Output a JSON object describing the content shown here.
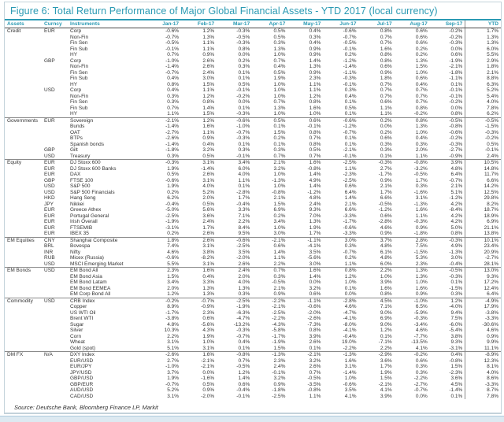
{
  "colors": {
    "accent_teal": "#2b9ab3",
    "text": "#333333",
    "separator": "#8a8a8a"
  },
  "chart_data": {
    "type": "table",
    "title": "Figure 6: Total Return Performance of Major Global Financial Assets - YTD 2017 (local currency)",
    "source": "Source: Deutsche Bank, Bloomberg Finance LP, Markit",
    "columns": [
      "Assets",
      "Curncy",
      "Instruments",
      "Jan-17",
      "Feb-17",
      "Mar-17",
      "Apr-17",
      "May-17",
      "Jun-17",
      "Jul-17",
      "Aug-17",
      "Sep-17",
      "YTD"
    ],
    "rows": [
      {
        "asset": "Credit",
        "ccy": "EUR",
        "instrument": "Corp",
        "values": [
          "-0.6%",
          "1.2%",
          "-0.3%",
          "0.5%",
          "0.4%",
          "-0.6%",
          "0.8%",
          "0.6%",
          "-0.2%",
          "1.7%"
        ]
      },
      {
        "asset": "",
        "ccy": "",
        "instrument": "Non-Fin",
        "values": [
          "-0.7%",
          "1.3%",
          "-0.5%",
          "0.5%",
          "0.3%",
          "-0.7%",
          "0.7%",
          "0.6%",
          "-0.2%",
          "1.3%"
        ]
      },
      {
        "asset": "",
        "ccy": "",
        "instrument": "Fin Sen",
        "values": [
          "-0.5%",
          "1.1%",
          "-0.3%",
          "0.3%",
          "0.4%",
          "-0.5%",
          "0.7%",
          "0.6%",
          "-0.3%",
          "1.3%"
        ]
      },
      {
        "asset": "",
        "ccy": "",
        "instrument": "Fin Sub",
        "values": [
          "-0.1%",
          "1.1%",
          "0.8%",
          "1.3%",
          "0.9%",
          "-0.1%",
          "1.6%",
          "0.2%",
          "0.0%",
          "6.0%"
        ]
      },
      {
        "asset": "",
        "ccy": "",
        "instrument": "HY",
        "values": [
          "0.7%",
          "0.9%",
          "0.0%",
          "1.0%",
          "0.9%",
          "0.2%",
          "0.8%",
          "0.2%",
          "0.6%",
          "5.5%"
        ]
      },
      {
        "asset": "",
        "ccy": "GBP",
        "instrument": "Corp",
        "values": [
          "-1.0%",
          "2.6%",
          "0.2%",
          "0.7%",
          "1.4%",
          "-1.2%",
          "0.8%",
          "1.3%",
          "-1.9%",
          "2.9%"
        ]
      },
      {
        "asset": "",
        "ccy": "",
        "instrument": "Non-Fin",
        "values": [
          "-1.4%",
          "2.6%",
          "0.3%",
          "0.4%",
          "1.3%",
          "-1.4%",
          "0.6%",
          "1.5%",
          "-2.1%",
          "1.8%"
        ]
      },
      {
        "asset": "",
        "ccy": "",
        "instrument": "Fin Sen",
        "values": [
          "-0.7%",
          "2.4%",
          "0.1%",
          "0.5%",
          "0.9%",
          "-1.1%",
          "0.9%",
          "1.0%",
          "-1.8%",
          "2.1%"
        ]
      },
      {
        "asset": "",
        "ccy": "",
        "instrument": "Fin Sub",
        "values": [
          "0.4%",
          "3.0%",
          "0.1%",
          "1.9%",
          "2.3%",
          "-0.3%",
          "1.8%",
          "0.6%",
          "-1.1%",
          "8.8%"
        ]
      },
      {
        "asset": "",
        "ccy": "",
        "instrument": "HY",
        "values": [
          "0.8%",
          "1.5%",
          "0.5%",
          "1.0%",
          "1.1%",
          "-0.1%",
          "0.7%",
          "0.4%",
          "0.1%",
          "6.3%"
        ]
      },
      {
        "asset": "",
        "ccy": "USD",
        "instrument": "Corp",
        "values": [
          "0.4%",
          "1.1%",
          "-0.1%",
          "1.0%",
          "1.1%",
          "0.3%",
          "0.7%",
          "0.7%",
          "-0.1%",
          "5.2%"
        ]
      },
      {
        "asset": "",
        "ccy": "",
        "instrument": "Non-Fin",
        "values": [
          "0.3%",
          "1.2%",
          "-0.2%",
          "1.0%",
          "1.2%",
          "0.4%",
          "0.7%",
          "0.7%",
          "-0.1%",
          "5.4%"
        ]
      },
      {
        "asset": "",
        "ccy": "",
        "instrument": "Fin Sen",
        "values": [
          "0.3%",
          "0.8%",
          "0.0%",
          "0.7%",
          "0.8%",
          "0.1%",
          "0.6%",
          "0.7%",
          "-0.2%",
          "4.0%"
        ]
      },
      {
        "asset": "",
        "ccy": "",
        "instrument": "Fin Sub",
        "values": [
          "0.7%",
          "1.4%",
          "0.1%",
          "1.3%",
          "1.6%",
          "0.5%",
          "1.1%",
          "0.8%",
          "0.0%",
          "7.8%"
        ]
      },
      {
        "asset": "",
        "ccy": "",
        "instrument": "HY",
        "values": [
          "1.1%",
          "1.5%",
          "-0.3%",
          "1.0%",
          "1.0%",
          "0.1%",
          "1.1%",
          "-0.2%",
          "0.8%",
          "6.2%"
        ]
      },
      {
        "asset": "Governments",
        "ccy": "EUR",
        "instrument": "Sovereign",
        "values": [
          "-2.1%",
          "1.2%",
          "-0.6%",
          "0.5%",
          "0.6%",
          "-0.6%",
          "0.2%",
          "0.8%",
          "-0.5%",
          "-0.5%"
        ]
      },
      {
        "asset": "",
        "ccy": "",
        "instrument": "Bunds",
        "values": [
          "-1.4%",
          "1.6%",
          "-1.0%",
          "0.1%",
          "-0.1%",
          "-1.2%",
          "0.0%",
          "1.3%",
          "-0.8%",
          "-1.5%"
        ]
      },
      {
        "asset": "",
        "ccy": "",
        "instrument": "OAT",
        "values": [
          "-2.7%",
          "1.1%",
          "-0.7%",
          "1.5%",
          "0.8%",
          "-0.7%",
          "0.2%",
          "1.0%",
          "-0.6%",
          "-0.3%"
        ]
      },
      {
        "asset": "",
        "ccy": "",
        "instrument": "BTPs",
        "values": [
          "-2.6%",
          "0.9%",
          "-0.3%",
          "0.2%",
          "0.7%",
          "0.1%",
          "0.6%",
          "0.4%",
          "-0.2%",
          "-0.2%"
        ]
      },
      {
        "asset": "",
        "ccy": "",
        "instrument": "Spanish bonds",
        "values": [
          "-1.4%",
          "0.4%",
          "0.1%",
          "0.1%",
          "0.8%",
          "0.1%",
          "0.3%",
          "0.3%",
          "-0.3%",
          "0.5%"
        ]
      },
      {
        "asset": "",
        "ccy": "GBP",
        "instrument": "Gilt",
        "values": [
          "-1.8%",
          "3.2%",
          "0.3%",
          "0.3%",
          "0.5%",
          "-2.1%",
          "0.3%",
          "2.0%",
          "-2.7%",
          "-0.1%"
        ]
      },
      {
        "asset": "",
        "ccy": "USD",
        "instrument": "Treasury",
        "values": [
          "0.3%",
          "0.5%",
          "-0.1%",
          "0.7%",
          "0.7%",
          "-0.1%",
          "0.1%",
          "1.1%",
          "-0.9%",
          "2.4%"
        ]
      },
      {
        "asset": "Equity",
        "ccy": "EUR",
        "instrument": "DJ Stoxx 600",
        "values": [
          "-0.3%",
          "3.1%",
          "3.4%",
          "2.1%",
          "1.6%",
          "-2.5%",
          "-0.3%",
          "-0.8%",
          "3.9%",
          "10.5%"
        ]
      },
      {
        "asset": "",
        "ccy": "EUR",
        "instrument": "DJ Stoxx 600 Banks",
        "values": [
          "1.9%",
          "-1.4%",
          "6.0%",
          "3.2%",
          "-0.8%",
          "1.1%",
          "2.7%",
          "-3.2%",
          "4.8%",
          "14.8%"
        ]
      },
      {
        "asset": "",
        "ccy": "EUR",
        "instrument": "DAX",
        "values": [
          "0.5%",
          "2.6%",
          "4.0%",
          "1.0%",
          "1.4%",
          "-2.3%",
          "-1.7%",
          "-0.5%",
          "6.4%",
          "11.7%"
        ]
      },
      {
        "asset": "",
        "ccy": "GBP",
        "instrument": "FTSE 100",
        "values": [
          "-0.6%",
          "3.1%",
          "1.1%",
          "-1.3%",
          "4.9%",
          "-2.5%",
          "0.9%",
          "1.7%",
          "-0.7%",
          "6.6%"
        ]
      },
      {
        "asset": "",
        "ccy": "USD",
        "instrument": "S&P 500",
        "values": [
          "1.9%",
          "4.0%",
          "0.1%",
          "1.0%",
          "1.4%",
          "0.6%",
          "2.1%",
          "0.3%",
          "2.1%",
          "14.2%"
        ]
      },
      {
        "asset": "",
        "ccy": "USD",
        "instrument": "S&P 500 Financials",
        "values": [
          "0.2%",
          "5.2%",
          "-2.8%",
          "-0.8%",
          "-1.2%",
          "6.4%",
          "1.7%",
          "-1.6%",
          "5.1%",
          "12.5%"
        ]
      },
      {
        "asset": "",
        "ccy": "HKD",
        "instrument": "Hang Seng",
        "values": [
          "6.2%",
          "2.0%",
          "1.7%",
          "2.1%",
          "4.8%",
          "1.4%",
          "6.6%",
          "3.1%",
          "-1.2%",
          "29.8%"
        ]
      },
      {
        "asset": "",
        "ccy": "JPY",
        "instrument": "Nikkei",
        "values": [
          "-0.4%",
          "0.5%",
          "-0.4%",
          "1.5%",
          "2.4%",
          "2.1%",
          "-0.5%",
          "-1.3%",
          "4.2%",
          "8.2%"
        ]
      },
      {
        "asset": "",
        "ccy": "EUR",
        "instrument": "Greece Athex",
        "values": [
          "-5.0%",
          "5.6%",
          "3.3%",
          "6.9%",
          "9.3%",
          "6.6%",
          "-1.2%",
          "1.6%",
          "-8.4%",
          "18.7%"
        ]
      },
      {
        "asset": "",
        "ccy": "EUR",
        "instrument": "Portugal General",
        "values": [
          "-2.5%",
          "3.6%",
          "7.1%",
          "0.2%",
          "7.0%",
          "-3.3%",
          "0.6%",
          "1.1%",
          "4.2%",
          "18.9%"
        ]
      },
      {
        "asset": "",
        "ccy": "EUR",
        "instrument": "Irish Overall",
        "values": [
          "-1.9%",
          "2.4%",
          "2.2%",
          "3.4%",
          "1.3%",
          "-1.7%",
          "-2.8%",
          "-0.3%",
          "4.2%",
          "6.9%"
        ]
      },
      {
        "asset": "",
        "ccy": "EUR",
        "instrument": "FTSEMIB",
        "values": [
          "-3.1%",
          "1.7%",
          "8.4%",
          "1.0%",
          "1.9%",
          "-0.6%",
          "4.6%",
          "0.9%",
          "5.0%",
          "21.1%"
        ]
      },
      {
        "asset": "",
        "ccy": "EUR",
        "instrument": "IBEX 35",
        "values": [
          "0.2%",
          "2.6%",
          "9.5%",
          "3.0%",
          "1.7%",
          "-3.3%",
          "0.9%",
          "-1.8%",
          "0.8%",
          "13.8%"
        ]
      },
      {
        "asset": "EM Equities",
        "ccy": "CNY",
        "instrument": "Shanghai Composite",
        "values": [
          "1.8%",
          "2.6%",
          "-0.6%",
          "-2.1%",
          "-1.1%",
          "3.0%",
          "3.7%",
          "2.8%",
          "-0.3%",
          "10.1%"
        ]
      },
      {
        "asset": "",
        "ccy": "BRL",
        "instrument": "Bovespa",
        "values": [
          "7.4%",
          "3.1%",
          "-2.5%",
          "0.6%",
          "-4.1%",
          "0.3%",
          "4.8%",
          "7.5%",
          "4.9%",
          "23.4%"
        ]
      },
      {
        "asset": "",
        "ccy": "INR",
        "instrument": "Nifty",
        "values": [
          "4.6%",
          "3.8%",
          "3.5%",
          "1.4%",
          "3.5%",
          "-0.7%",
          "6.1%",
          "-1.5%",
          "-1.3%",
          "20.9%"
        ]
      },
      {
        "asset": "",
        "ccy": "RUB",
        "instrument": "Micex (Russia)",
        "values": [
          "-0.6%",
          "-8.2%",
          "-2.0%",
          "1.1%",
          "-5.6%",
          "0.2%",
          "4.8%",
          "5.3%",
          "3.0%",
          "-2.7%"
        ]
      },
      {
        "asset": "",
        "ccy": "USD",
        "instrument": "MSCI Emerging Market",
        "values": [
          "5.5%",
          "3.1%",
          "2.6%",
          "2.2%",
          "3.0%",
          "1.1%",
          "6.0%",
          "2.3%",
          "-0.4%",
          "28.1%"
        ]
      },
      {
        "asset": "EM Bonds",
        "ccy": "USD",
        "instrument": "EM Bond All",
        "values": [
          "2.3%",
          "1.6%",
          "2.4%",
          "0.7%",
          "1.6%",
          "0.8%",
          "2.2%",
          "1.3%",
          "-0.5%",
          "13.0%"
        ]
      },
      {
        "asset": "",
        "ccy": "",
        "instrument": "EM Bond Asia",
        "values": [
          "1.5%",
          "0.4%",
          "2.0%",
          "0.3%",
          "1.4%",
          "1.2%",
          "1.0%",
          "1.3%",
          "-0.3%",
          "9.3%"
        ]
      },
      {
        "asset": "",
        "ccy": "",
        "instrument": "EM Bond Latam",
        "values": [
          "3.4%",
          "3.3%",
          "4.0%",
          "-0.5%",
          "0.0%",
          "1.0%",
          "3.9%",
          "1.0%",
          "0.1%",
          "17.2%"
        ]
      },
      {
        "asset": "",
        "ccy": "",
        "instrument": "EM Bond EEMEA",
        "values": [
          "2.0%",
          "1.3%",
          "1.3%",
          "2.1%",
          "3.2%",
          "0.1%",
          "1.6%",
          "1.6%",
          "-1.5%",
          "12.4%"
        ]
      },
      {
        "asset": "",
        "ccy": "",
        "instrument": "EM Corp Bond All",
        "values": [
          "1.2%",
          "1.3%",
          "0.3%",
          "0.9%",
          "0.6%",
          "0.0%",
          "0.8%",
          "0.9%",
          "0.3%",
          "6.4%"
        ]
      },
      {
        "asset": "Commodity",
        "ccy": "USD",
        "instrument": "CRB Index",
        "values": [
          "-0.2%",
          "-0.7%",
          "-2.5%",
          "-2.2%",
          "-1.1%",
          "-2.8%",
          "4.5%",
          "-1.0%",
          "1.2%",
          "-4.9%"
        ]
      },
      {
        "asset": "",
        "ccy": "",
        "instrument": "Copper",
        "values": [
          "8.9%",
          "-0.9%",
          "-1.9%",
          "-2.1%",
          "-0.6%",
          "4.6%",
          "7.1%",
          "6.5%",
          "-4.0%",
          "17.9%"
        ]
      },
      {
        "asset": "",
        "ccy": "",
        "instrument": "US WTI Oil",
        "values": [
          "-1.7%",
          "2.3%",
          "-6.3%",
          "-2.5%",
          "-2.0%",
          "-4.7%",
          "9.0%",
          "-5.9%",
          "9.4%",
          "-3.8%"
        ]
      },
      {
        "asset": "",
        "ccy": "",
        "instrument": "Brent WTI",
        "values": [
          "-3.8%",
          "0.6%",
          "-4.7%",
          "-2.2%",
          "-2.6%",
          "-4.1%",
          "6.9%",
          "-0.3%",
          "7.5%",
          "-3.3%"
        ]
      },
      {
        "asset": "",
        "ccy": "",
        "instrument": "Sugar",
        "values": [
          "4.8%",
          "-5.6%",
          "-13.2%",
          "-4.3%",
          "-7.3%",
          "-8.0%",
          "9.0%",
          "-3.4%",
          "-6.0%",
          "-30.6%"
        ]
      },
      {
        "asset": "",
        "ccy": "",
        "instrument": "Silver",
        "values": [
          "10.3%",
          "4.3%",
          "-0.3%",
          "-5.8%",
          "0.8%",
          "-4.1%",
          "1.2%",
          "4.6%",
          "-5.4%",
          "4.6%"
        ]
      },
      {
        "asset": "",
        "ccy": "",
        "instrument": "Corn",
        "values": [
          "2.2%",
          "1.9%",
          "-0.7%",
          "-1.7%",
          "3.9%",
          "-0.4%",
          "0.1%",
          "-7.7%",
          "3.8%",
          "0.9%"
        ]
      },
      {
        "asset": "",
        "ccy": "",
        "instrument": "Wheat",
        "values": [
          "3.1%",
          "1.0%",
          "0.4%",
          "-1.9%",
          "2.6%",
          "19.0%",
          "-7.1%",
          "-13.5%",
          "9.3%",
          "9.9%"
        ]
      },
      {
        "asset": "",
        "ccy": "",
        "instrument": "Gold (spot)",
        "values": [
          "5.1%",
          "3.1%",
          "0.1%",
          "1.5%",
          "0.1%",
          "-2.2%",
          "2.2%",
          "4.1%",
          "-3.1%",
          "11.1%"
        ]
      },
      {
        "asset": "DM FX",
        "ccy": "N/A",
        "instrument": "DXY Index",
        "values": [
          "-2.6%",
          "1.6%",
          "-0.8%",
          "-1.3%",
          "-2.1%",
          "-1.3%",
          "-2.9%",
          "-0.2%",
          "0.4%",
          "-8.9%"
        ]
      },
      {
        "asset": "",
        "ccy": "",
        "instrument": "EUR/USD",
        "values": [
          "2.7%",
          "-2.1%",
          "0.7%",
          "2.3%",
          "3.2%",
          "1.6%",
          "3.6%",
          "0.6%",
          "-0.8%",
          "12.3%"
        ]
      },
      {
        "asset": "",
        "ccy": "",
        "instrument": "EUR/JPY",
        "values": [
          "-1.0%",
          "-2.1%",
          "-0.5%",
          "2.4%",
          "2.6%",
          "3.1%",
          "1.7%",
          "0.3%",
          "1.5%",
          "8.1%"
        ]
      },
      {
        "asset": "",
        "ccy": "",
        "instrument": "JPY/USD",
        "values": [
          "3.7%",
          "0.0%",
          "1.2%",
          "-0.1%",
          "0.7%",
          "-1.4%",
          "1.9%",
          "0.3%",
          "-2.3%",
          "4.0%"
        ]
      },
      {
        "asset": "",
        "ccy": "",
        "instrument": "GBP/USD",
        "values": [
          "1.9%",
          "-1.6%",
          "1.4%",
          "3.2%",
          "-0.5%",
          "1.0%",
          "1.5%",
          "-2.2%",
          "3.6%",
          "8.6%"
        ]
      },
      {
        "asset": "",
        "ccy": "",
        "instrument": "GBP/EUR",
        "values": [
          "-0.7%",
          "0.5%",
          "0.6%",
          "0.9%",
          "-3.5%",
          "-0.6%",
          "-2.1%",
          "-2.7%",
          "4.5%",
          "-3.3%"
        ]
      },
      {
        "asset": "",
        "ccy": "",
        "instrument": "AUD/USD",
        "values": [
          "5.2%",
          "0.9%",
          "-0.4%",
          "-1.8%",
          "-0.8%",
          "3.5%",
          "4.1%",
          "-0.7%",
          "-1.4%",
          "8.7%"
        ]
      },
      {
        "asset": "",
        "ccy": "",
        "instrument": "CAD/USD",
        "values": [
          "3.1%",
          "-2.0%",
          "-0.1%",
          "-2.5%",
          "1.1%",
          "4.1%",
          "3.9%",
          "0.0%",
          "0.1%",
          "7.8%"
        ]
      }
    ]
  }
}
